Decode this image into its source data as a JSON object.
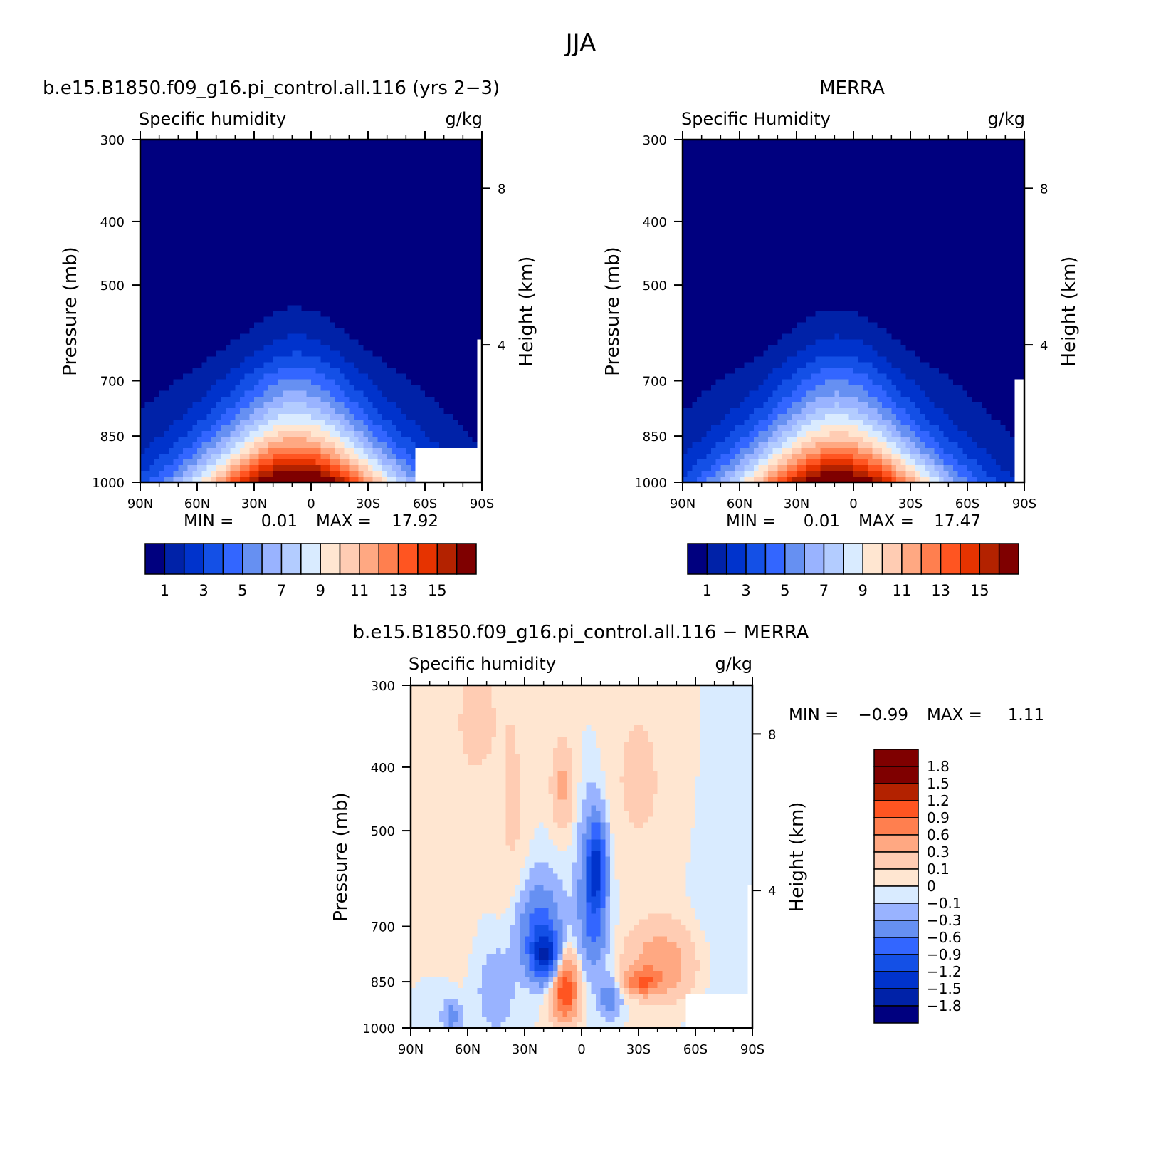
{
  "figure": {
    "title": "JJA"
  },
  "colors": {
    "seq": [
      "#00007f",
      "#0022a8",
      "#0033cc",
      "#1450e6",
      "#3366ff",
      "#6690f2",
      "#99b3ff",
      "#b3ccff",
      "#d9ebff",
      "#ffe6d1",
      "#ffccb3",
      "#ffa882",
      "#ff7f4f",
      "#ff5521",
      "#e63300",
      "#b32200",
      "#7f0000"
    ],
    "diff": [
      "#00007f",
      "#0022a8",
      "#0033cc",
      "#1450e6",
      "#3366ff",
      "#6690f2",
      "#99b3ff",
      "#d9ebff",
      "#ffe6d1",
      "#ffccb3",
      "#ffa882",
      "#ff7f4f",
      "#ff5521",
      "#b32200",
      "#7f0000"
    ]
  },
  "chart_data": [
    {
      "type": "heatmap",
      "title": "b.e15.B1850.f09_g16.pi_control.all.116 (yrs 2−3)",
      "left_label": "Specific humidity",
      "units": "g/kg",
      "ylabel": "Pressure (mb)",
      "ylabel_right": "Height (km)",
      "x_ticks": [
        "90N",
        "60N",
        "30N",
        "0",
        "30S",
        "60S",
        "90S"
      ],
      "y_ticks": [
        "300",
        "400",
        "500",
        "700",
        "850",
        "1000"
      ],
      "y_right_ticks": [
        "8",
        "4"
      ],
      "ylim": [
        1000,
        300
      ],
      "xlim": [
        90,
        -90
      ],
      "stats": {
        "min_label": "MIN =",
        "min": "0.01",
        "max_label": "MAX =",
        "max": "17.92"
      },
      "colorbar_labels": [
        "1",
        "3",
        "5",
        "7",
        "9",
        "11",
        "13",
        "15"
      ],
      "peak": 17.92,
      "peak_lat": 8
    },
    {
      "type": "heatmap",
      "title": "MERRA",
      "left_label": "Specific Humidity",
      "units": "g/kg",
      "ylabel": "Pressure (mb)",
      "ylabel_right": "Height (km)",
      "x_ticks": [
        "90N",
        "60N",
        "30N",
        "0",
        "30S",
        "60S",
        "90S"
      ],
      "y_ticks": [
        "300",
        "400",
        "500",
        "700",
        "850",
        "1000"
      ],
      "y_right_ticks": [
        "8",
        "4"
      ],
      "ylim": [
        1000,
        300
      ],
      "xlim": [
        90,
        -90
      ],
      "stats": {
        "min_label": "MIN =",
        "min": "0.01",
        "max_label": "MAX =",
        "max": "17.47"
      },
      "colorbar_labels": [
        "1",
        "3",
        "5",
        "7",
        "9",
        "11",
        "13",
        "15"
      ],
      "peak": 17.47,
      "peak_lat": 8
    },
    {
      "type": "heatmap",
      "title": "b.e15.B1850.f09_g16.pi_control.all.116 − MERRA",
      "left_label": "Specific humidity",
      "units": "g/kg",
      "ylabel": "Pressure (mb)",
      "ylabel_right": "Height (km)",
      "x_ticks": [
        "90N",
        "60N",
        "30N",
        "0",
        "30S",
        "60S",
        "90S"
      ],
      "y_ticks": [
        "300",
        "400",
        "500",
        "700",
        "850",
        "1000"
      ],
      "y_right_ticks": [
        "8",
        "4"
      ],
      "ylim": [
        1000,
        300
      ],
      "xlim": [
        90,
        -90
      ],
      "stats": {
        "min_label": "MIN =",
        "min": "−0.99",
        "max_label": "MAX =",
        "max": "1.11"
      },
      "colorbar_labels": [
        "1.8",
        "1.5",
        "1.2",
        "0.9",
        "0.6",
        "0.3",
        "0.1",
        "0",
        "−0.1",
        "−0.3",
        "−0.6",
        "−0.9",
        "−1.2",
        "−1.5",
        "−1.8"
      ]
    }
  ]
}
